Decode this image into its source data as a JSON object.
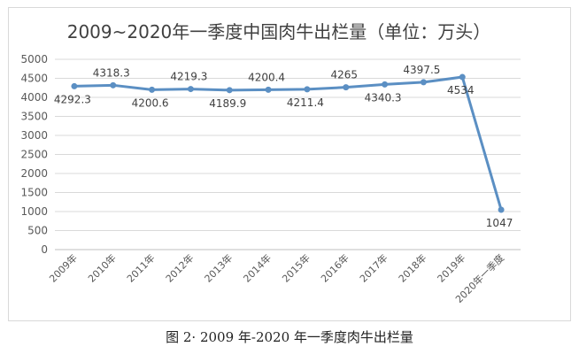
{
  "chart_data": {
    "type": "line",
    "title": "2009~2020年一季度中国肉牛出栏量（单位：万头）",
    "categories": [
      "2009年",
      "2010年",
      "2011年",
      "2012年",
      "2013年",
      "2014年",
      "2015年",
      "2016年",
      "2017年",
      "2018年",
      "2019年",
      "2020年一季度"
    ],
    "series": [
      {
        "values": [
          4292.3,
          4318.3,
          4200.6,
          4219.3,
          4189.9,
          4200.4,
          4211.4,
          4265,
          4340.3,
          4397.5,
          4534,
          1047
        ],
        "labels": [
          "4292.3",
          "4318.3",
          "4200.6",
          "4219.3",
          "4189.9",
          "4200.4",
          "4211.4",
          "4265",
          "4340.3",
          "4397.5",
          "4534",
          "1047"
        ]
      }
    ],
    "ylim": [
      0,
      5000
    ],
    "yticks": [
      "0",
      "500",
      "1000",
      "1500",
      "2000",
      "2500",
      "3000",
      "3500",
      "4000",
      "4500",
      "5000"
    ],
    "grid": true,
    "colors": {
      "line": "#5b8fc3",
      "grid": "#d9d9d9",
      "axis": "#bfbfbf"
    }
  },
  "caption": "图 2· 2009 年-2020 年一季度肉牛出栏量"
}
